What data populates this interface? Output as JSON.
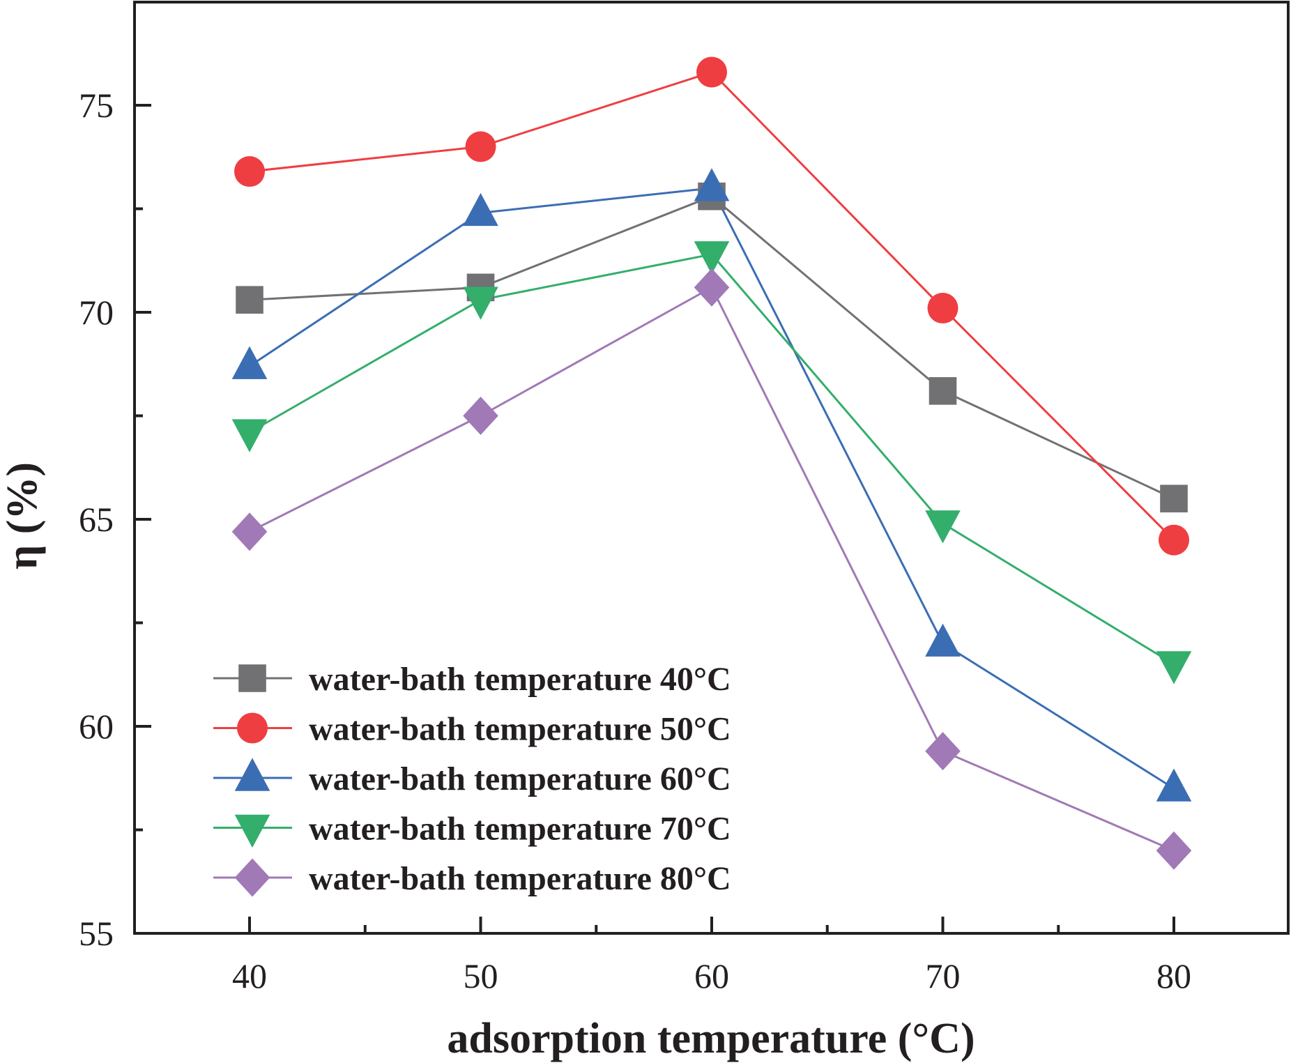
{
  "chart_data": {
    "type": "line",
    "title": "",
    "xlabel": "adsorption temperature (°C)",
    "ylabel": "η (%)",
    "x": [
      40,
      50,
      60,
      70,
      80
    ],
    "xlim": [
      35,
      85
    ],
    "ylim": [
      55,
      78
    ],
    "xticks": [
      40,
      50,
      60,
      70,
      80
    ],
    "xtick_labels": [
      "40",
      "50",
      "60",
      "70",
      "80"
    ],
    "yticks": [
      55,
      60,
      65,
      70,
      75
    ],
    "ytick_labels": [
      "55",
      "60",
      "65",
      "70",
      "75"
    ],
    "grid": false,
    "legend_position": "bottom-left",
    "series": [
      {
        "name": "water-bath temperature 40°C",
        "color": "#717174",
        "marker": "square",
        "values": [
          70.3,
          70.6,
          72.8,
          68.1,
          65.5
        ]
      },
      {
        "name": "water-bath temperature 50°C",
        "color": "#ef3e42",
        "marker": "circle",
        "values": [
          73.4,
          74.0,
          75.8,
          70.1,
          64.5
        ]
      },
      {
        "name": "water-bath temperature 60°C",
        "color": "#3b6db3",
        "marker": "triangle-up",
        "values": [
          68.7,
          72.4,
          73.0,
          62.0,
          58.5
        ]
      },
      {
        "name": "water-bath temperature 70°C",
        "color": "#33ae6b",
        "marker": "triangle-down",
        "values": [
          67.1,
          70.3,
          71.4,
          64.9,
          61.5
        ]
      },
      {
        "name": "water-bath temperature 80°C",
        "color": "#a079b6",
        "marker": "diamond",
        "values": [
          64.7,
          67.5,
          70.6,
          59.4,
          57.0
        ]
      }
    ]
  }
}
